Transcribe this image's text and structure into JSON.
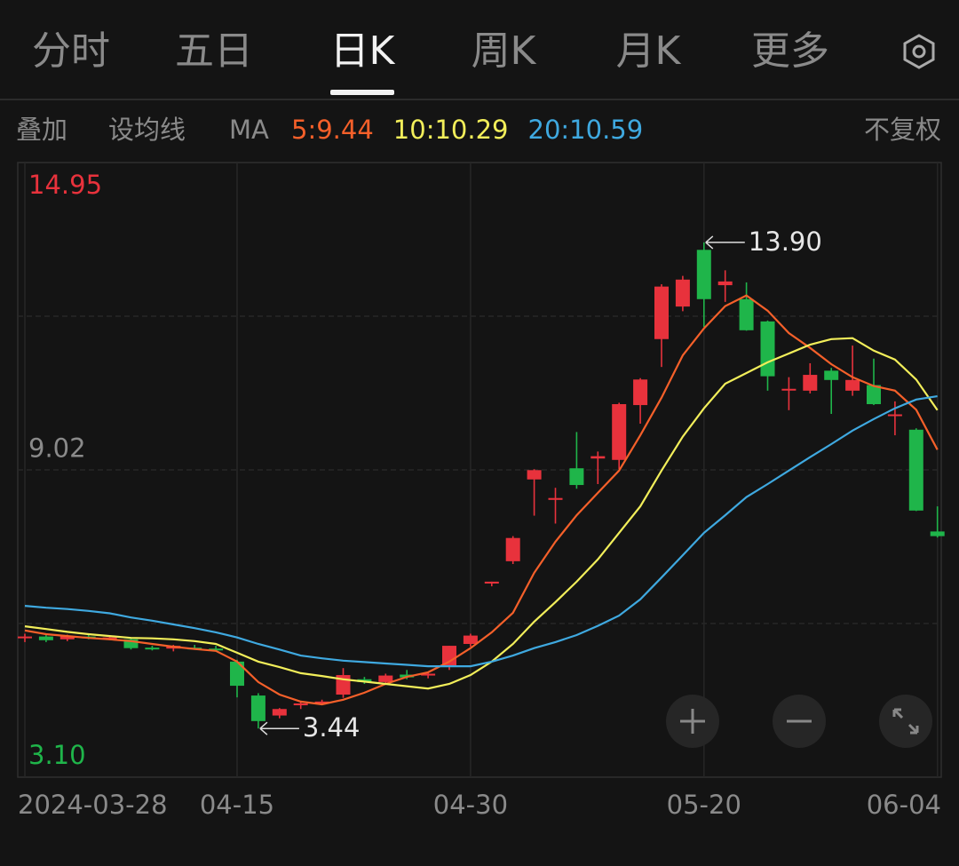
{
  "tabs": [
    "分时",
    "五日",
    "日K",
    "周K",
    "月K",
    "更多"
  ],
  "active_tab": 2,
  "toolbar": {
    "overlay": "叠加",
    "set_ma": "设均线",
    "ma": "MA",
    "adjust": "不复权"
  },
  "chart_data": {
    "type": "candlestick",
    "up_color": "#e8323c",
    "down_color": "#1fb54a",
    "categories": [
      "2024-03-28",
      null,
      null,
      null,
      null,
      null,
      null,
      null,
      null,
      null,
      "04-15",
      null,
      null,
      null,
      null,
      null,
      null,
      null,
      null,
      null,
      null,
      "04-30",
      null,
      null,
      null,
      null,
      null,
      null,
      null,
      null,
      null,
      null,
      "05-20",
      null,
      null,
      null,
      null,
      null,
      null,
      null,
      null,
      null,
      null,
      "06-04"
    ],
    "open": [
      5.4,
      5.42,
      5.36,
      5.42,
      5.4,
      5.36,
      5.18,
      5.16,
      5.18,
      5.16,
      4.88,
      4.15,
      3.72,
      3.94,
      4.0,
      4.17,
      4.5,
      4.44,
      4.6,
      4.58,
      4.78,
      5.26,
      6.56,
      7.04,
      8.8,
      8.36,
      9.04,
      9.25,
      9.22,
      10.4,
      11.82,
      12.52,
      13.74,
      12.98,
      12.68,
      12.2,
      10.75,
      10.71,
      11.14,
      10.71,
      10.83,
      10.19,
      9.87,
      7.68
    ],
    "high": [
      5.48,
      5.46,
      5.46,
      5.46,
      5.44,
      5.4,
      5.22,
      5.24,
      5.24,
      5.22,
      4.92,
      4.2,
      3.88,
      4.02,
      4.06,
      4.74,
      4.55,
      4.62,
      4.7,
      4.66,
      5.22,
      5.48,
      6.6,
      7.58,
      9.02,
      8.62,
      9.82,
      9.4,
      10.45,
      10.98,
      13.0,
      13.18,
      13.9,
      13.3,
      13.04,
      12.22,
      11.0,
      11.3,
      11.2,
      11.68,
      11.4,
      10.48,
      9.9,
      8.22
    ],
    "low": [
      5.3,
      5.3,
      5.32,
      5.36,
      5.34,
      5.14,
      5.12,
      5.1,
      5.14,
      5.1,
      4.11,
      3.44,
      3.66,
      3.86,
      3.94,
      4.1,
      4.4,
      4.4,
      4.5,
      4.52,
      4.7,
      5.2,
      6.5,
      6.98,
      8.02,
      7.85,
      8.6,
      8.7,
      9.02,
      10.0,
      11.22,
      12.42,
      12.08,
      12.62,
      12.0,
      10.71,
      10.29,
      10.65,
      10.21,
      10.6,
      10.4,
      9.75,
      8.12,
      7.55
    ],
    "close": [
      5.42,
      5.34,
      5.43,
      5.41,
      5.4,
      5.17,
      5.16,
      5.22,
      5.17,
      5.12,
      4.36,
      3.6,
      3.86,
      3.98,
      4.02,
      4.59,
      4.44,
      4.58,
      4.54,
      4.62,
      5.22,
      5.44,
      6.6,
      7.54,
      9.0,
      8.4,
      8.68,
      9.3,
      10.42,
      10.95,
      12.95,
      13.1,
      12.68,
      13.06,
      12.01,
      11.02,
      10.75,
      11.05,
      10.94,
      10.94,
      10.42,
      10.2,
      8.13,
      7.58
    ],
    "series": [
      {
        "name": "5:9.44",
        "color": "#f5602a",
        "values": [
          5.55,
          5.47,
          5.43,
          5.39,
          5.36,
          5.32,
          5.26,
          5.2,
          5.15,
          5.11,
          4.88,
          4.44,
          4.17,
          4.02,
          3.96,
          4.06,
          4.21,
          4.4,
          4.55,
          4.65,
          4.88,
          5.17,
          5.51,
          5.93,
          6.79,
          7.46,
          8.03,
          8.51,
          8.99,
          9.75,
          10.56,
          11.47,
          12.05,
          12.53,
          12.76,
          12.43,
          11.95,
          11.63,
          11.28,
          11.0,
          10.81,
          10.71,
          10.3,
          9.44
        ]
      },
      {
        "name": "10:10.29",
        "color": "#f2ee5a",
        "values": [
          5.64,
          5.58,
          5.52,
          5.47,
          5.43,
          5.39,
          5.38,
          5.36,
          5.32,
          5.26,
          5.07,
          4.88,
          4.76,
          4.63,
          4.57,
          4.5,
          4.45,
          4.4,
          4.35,
          4.3,
          4.4,
          4.59,
          4.88,
          5.26,
          5.74,
          6.16,
          6.6,
          7.08,
          7.65,
          8.22,
          8.99,
          9.72,
          10.33,
          10.86,
          11.09,
          11.32,
          11.51,
          11.7,
          11.82,
          11.84,
          11.57,
          11.38,
          10.95,
          10.29
        ]
      },
      {
        "name": "20:10.59",
        "color": "#3fa9e0",
        "values": [
          6.08,
          6.04,
          6.01,
          5.97,
          5.92,
          5.83,
          5.76,
          5.68,
          5.6,
          5.51,
          5.4,
          5.26,
          5.14,
          5.01,
          4.95,
          4.9,
          4.87,
          4.84,
          4.81,
          4.78,
          4.78,
          4.78,
          4.88,
          5.01,
          5.17,
          5.3,
          5.45,
          5.65,
          5.87,
          6.22,
          6.69,
          7.17,
          7.65,
          8.03,
          8.42,
          8.7,
          8.99,
          9.28,
          9.56,
          9.85,
          10.1,
          10.33,
          10.52,
          10.59
        ]
      }
    ],
    "ylim": [
      3.1,
      14.95
    ],
    "yticks": [
      14.95,
      9.02,
      {
        "value": 3.1,
        "label": "3.10"
      }
    ],
    "ytick_colors": [
      "#e8323c",
      "#8a8a8a",
      "#1fb54a"
    ],
    "annotations": [
      {
        "text": "13.90",
        "at": "high"
      },
      {
        "text": "3.44",
        "at": "low"
      }
    ]
  }
}
